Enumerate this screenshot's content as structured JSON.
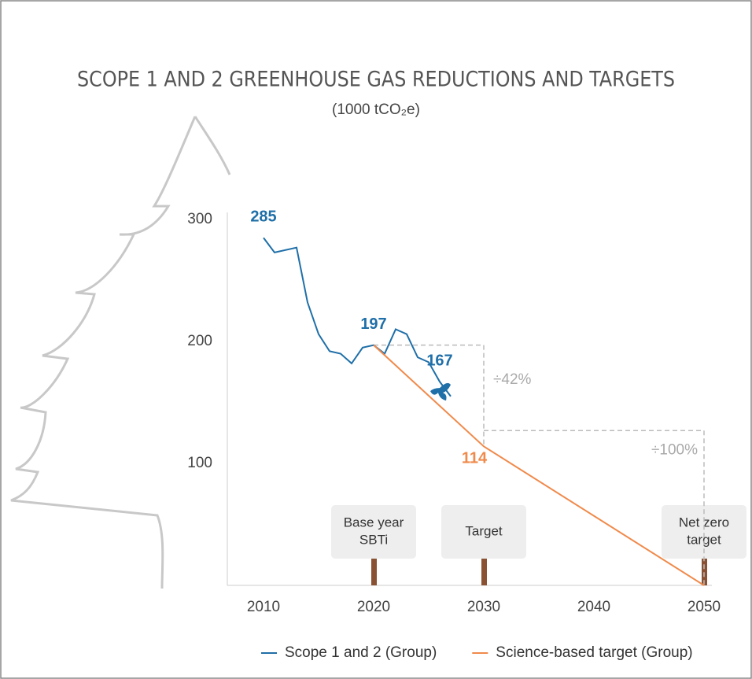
{
  "chart_data": {
    "type": "line",
    "title": "SCOPE 1 AND 2 GREENHOUSE GAS REDUCTIONS AND TARGETS",
    "subtitle": "(1000 tCO₂e)",
    "series": [
      {
        "name": "Scope 1 and 2 (Group)",
        "color": "#1f6fa8",
        "x": [
          2010,
          2011,
          2013,
          2014,
          2015,
          2016,
          2017,
          2018,
          2019,
          2020,
          2021,
          2022,
          2023,
          2024,
          2025,
          2026,
          2027
        ],
        "values": [
          285,
          273,
          277,
          232,
          206,
          192,
          190,
          182,
          195,
          197,
          190,
          210,
          206,
          187,
          183,
          167,
          155
        ],
        "labeled": [
          0,
          9,
          15
        ]
      },
      {
        "name": "Science-based target (Group)",
        "color": "#f08a4b",
        "x": [
          2020,
          2030,
          2050
        ],
        "values": [
          197,
          114,
          0
        ],
        "labeled": [
          1
        ]
      }
    ],
    "xlim": [
      2007,
      2051
    ],
    "ylim": [
      0,
      300
    ],
    "xticks": [
      2010,
      2020,
      2030,
      2040,
      2050
    ],
    "yticks": [
      100,
      200,
      300
    ],
    "reductions": [
      "÷42%",
      "÷100%"
    ],
    "milestones": [
      {
        "x": 2020,
        "lines": [
          "Base year",
          "SBTi"
        ]
      },
      {
        "x": 2030,
        "lines": [
          "Target"
        ]
      },
      {
        "x": 2050,
        "lines": [
          "Net zero",
          "target"
        ]
      }
    ]
  }
}
